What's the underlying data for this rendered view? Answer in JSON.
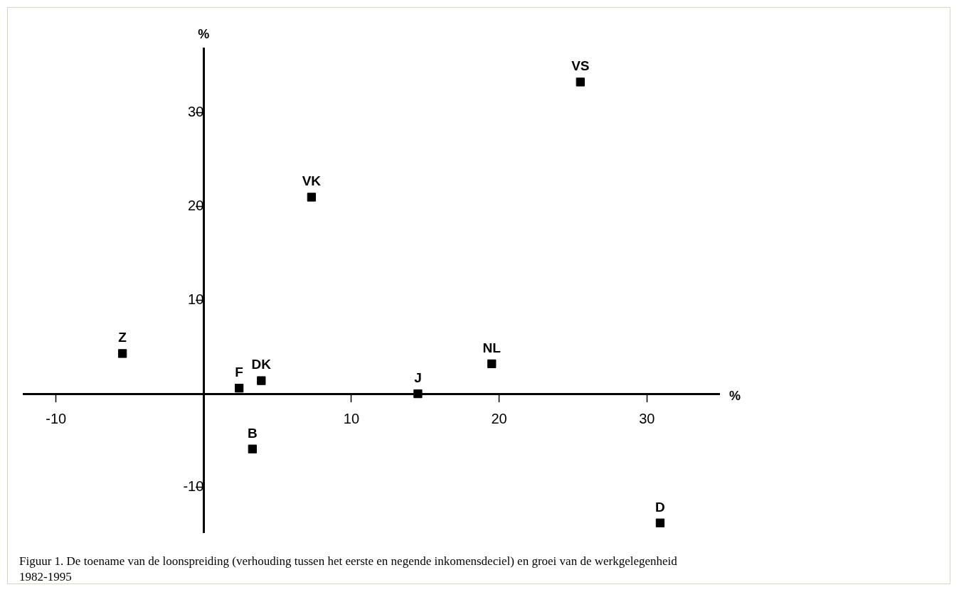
{
  "chart_data": {
    "type": "scatter",
    "xlabel": "%",
    "ylabel": "%",
    "marker": "square",
    "grid": false,
    "legend": false,
    "xlim": [
      -12.2,
      34.9
    ],
    "ylim": [
      -14.8,
      36.9
    ],
    "xticks": [
      -10,
      10,
      20,
      30
    ],
    "yticks": [
      -10,
      10,
      20,
      30
    ],
    "series": [
      {
        "name": "VS",
        "color": "#000000",
        "x": [
          25.5
        ],
        "values": [
          33.3
        ]
      },
      {
        "name": "VK",
        "color": "#000000",
        "x": [
          7.3
        ],
        "values": [
          21.0
        ]
      },
      {
        "name": "Z",
        "color": "#000000",
        "x": [
          -5.5
        ],
        "values": [
          4.3
        ]
      },
      {
        "name": "F",
        "color": "#000000",
        "x": [
          2.4
        ],
        "values": [
          0.6
        ]
      },
      {
        "name": "DK",
        "color": "#000000",
        "x": [
          3.9
        ],
        "values": [
          1.4
        ]
      },
      {
        "name": "J",
        "color": "#000000",
        "x": [
          14.5
        ],
        "values": [
          0.0
        ]
      },
      {
        "name": "NL",
        "color": "#000000",
        "x": [
          19.5
        ],
        "values": [
          3.2
        ]
      },
      {
        "name": "B",
        "color": "#000000",
        "x": [
          3.3
        ],
        "values": [
          -5.9
        ]
      },
      {
        "name": "D",
        "color": "#000000",
        "x": [
          30.9
        ],
        "values": [
          -13.8
        ]
      }
    ],
    "annotations": [
      "Figuur 1. De toename van de loonspreiding (verhouding tussen het eerste en negende inkomensdeciel) en groei van de werkgelegenheid 1982-1995"
    ]
  }
}
